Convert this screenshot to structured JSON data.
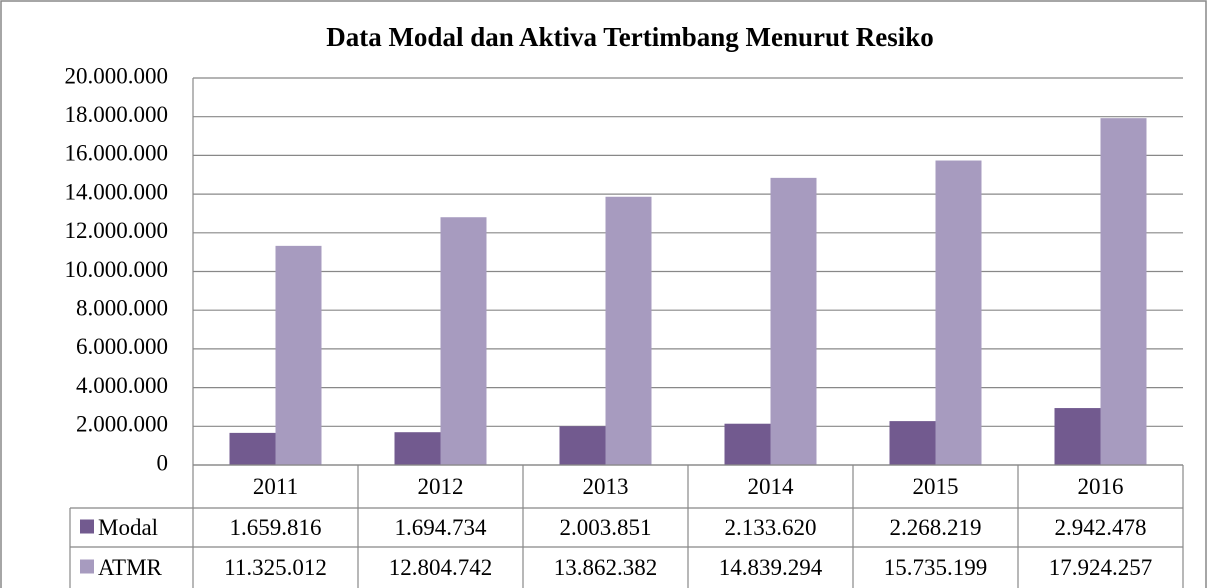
{
  "chart_data": {
    "type": "bar",
    "title": "Data Modal dan Aktiva Tertimbang Menurut Resiko",
    "categories": [
      "2011",
      "2012",
      "2013",
      "2014",
      "2015",
      "2016"
    ],
    "series": [
      {
        "name": "Modal",
        "color": "#725a8f",
        "values": [
          1659816,
          1694734,
          2003851,
          2133620,
          2268219,
          2942478
        ],
        "value_labels": [
          "1.659.816",
          "1.694.734",
          "2.003.851",
          "2.133.620",
          "2.268.219",
          "2.942.478"
        ]
      },
      {
        "name": "ATMR",
        "color": "#a79bbf",
        "values": [
          11325012,
          12804742,
          13862382,
          14839294,
          15735199,
          17924257
        ],
        "value_labels": [
          "11.325.012",
          "12.804.742",
          "13.862.382",
          "14.839.294",
          "15.735.199",
          "17.924.257"
        ]
      }
    ],
    "ylim": [
      0,
      20000000
    ],
    "yticks": [
      0,
      {
        "value": 2000000,
        "label": "2.000.000"
      },
      {
        "value": 4000000,
        "label": "4.000.000"
      },
      {
        "value": 6000000,
        "label": "6.000.000"
      },
      {
        "value": 8000000,
        "label": "8.000.000"
      },
      {
        "value": 10000000,
        "label": "10.000.000"
      },
      {
        "value": 12000000,
        "label": "12.000.000"
      },
      {
        "value": 14000000,
        "label": "14.000.000"
      },
      {
        "value": 16000000,
        "label": "16.000.000"
      },
      {
        "value": 18000000,
        "label": "18.000.000"
      },
      {
        "value": 20000000,
        "label": "20.000.000"
      }
    ],
    "grid": true,
    "data_table": true
  }
}
